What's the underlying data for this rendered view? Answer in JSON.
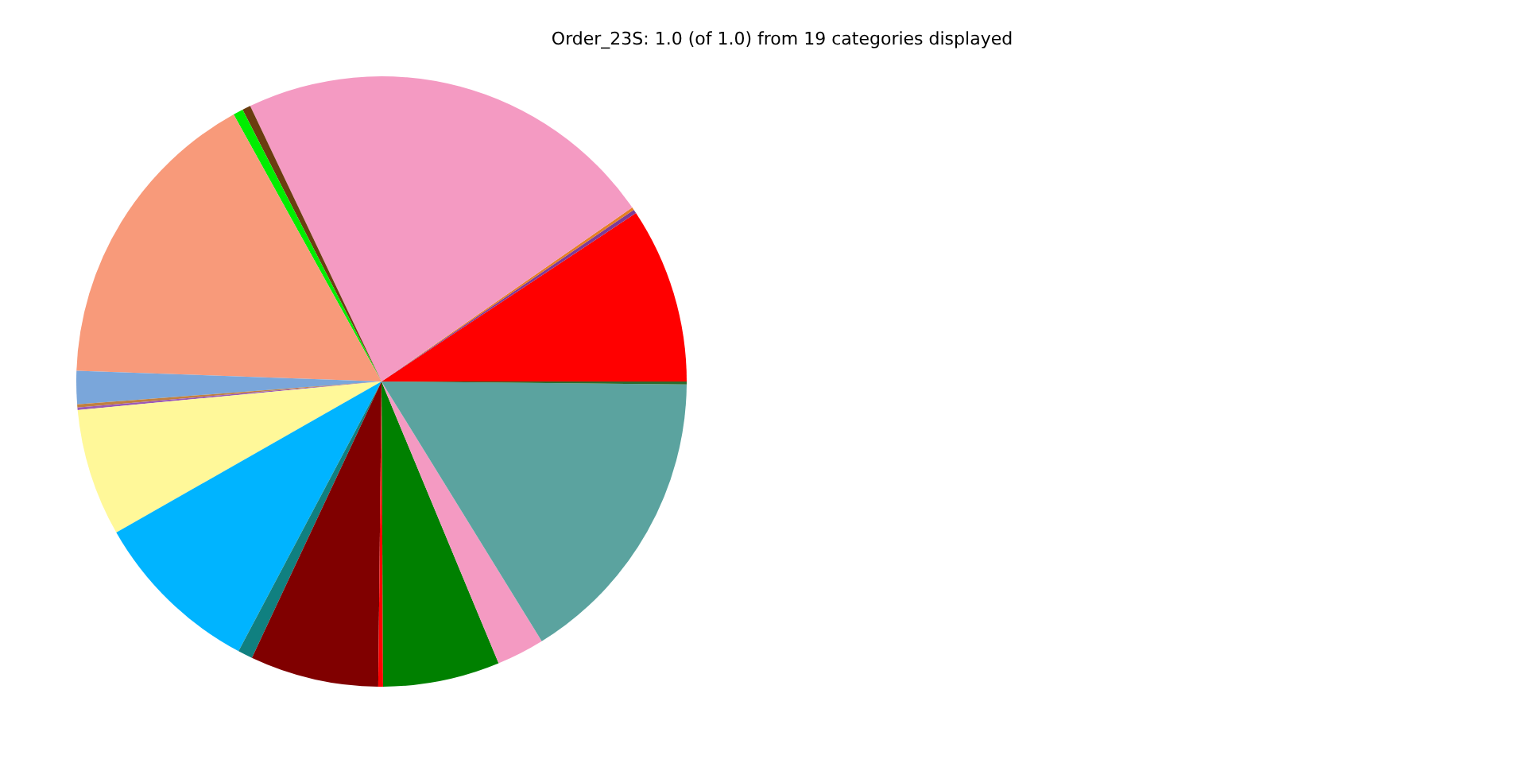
{
  "chart_data": {
    "type": "pie",
    "title": "Order_23S: 1.0 (of 1.0) from 19 categories displayed",
    "categories": [
      null,
      null,
      null,
      null,
      null,
      null,
      null,
      null,
      null,
      null,
      null,
      null,
      null,
      null,
      null,
      null,
      null,
      null,
      null
    ],
    "values": [
      9.31,
      0.2,
      0.15,
      22.42,
      0.44,
      0.53,
      16.39,
      1.75,
      0.17,
      0.13,
      6.75,
      9.0,
      0.78,
      6.81,
      0.25,
      6.19,
      2.53,
      16.04,
      0.16
    ],
    "colors": [
      "#ff0000",
      "#7d3c98",
      "#e67e22",
      "#f49ac2",
      "#6b3d10",
      "#00ee00",
      "#f89a7a",
      "#7aa6da",
      "#c08040",
      "#9b59b6",
      "#fff899",
      "#00b4ff",
      "#108080",
      "#800000",
      "#ff0000",
      "#008000",
      "#f49ac2",
      "#5ba39f",
      "#2e6b2e"
    ],
    "legend": false
  }
}
